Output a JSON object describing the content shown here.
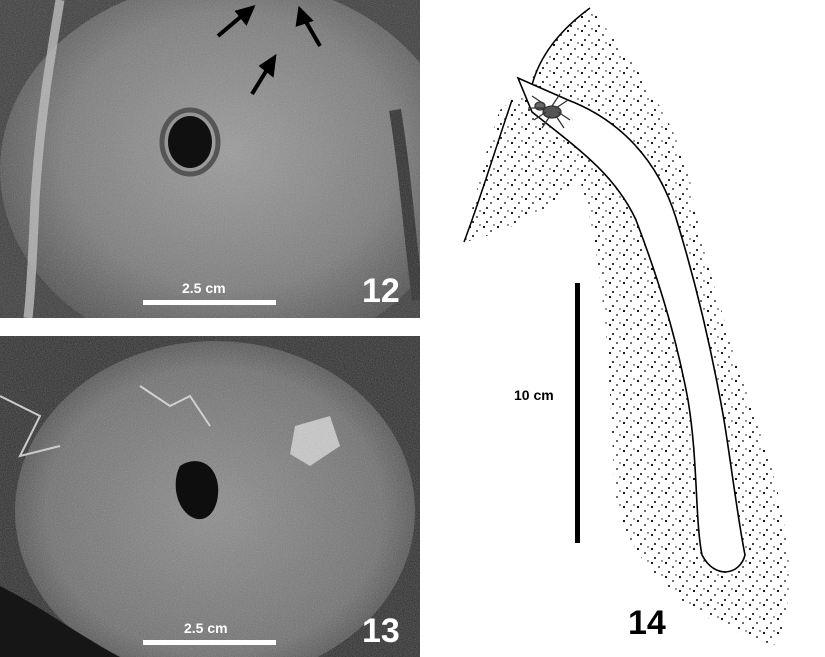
{
  "panels": [
    {
      "number": "12",
      "scale_label": "2.5 cm"
    },
    {
      "number": "13",
      "scale_label": "2.5 cm"
    },
    {
      "number": "14",
      "scale_label": "10 cm"
    }
  ],
  "colors": {
    "photo_light": "#8d8d8d",
    "photo_dark": "#2a2a2a",
    "ink": "#000000",
    "label_on_photo": "#ffffff"
  }
}
